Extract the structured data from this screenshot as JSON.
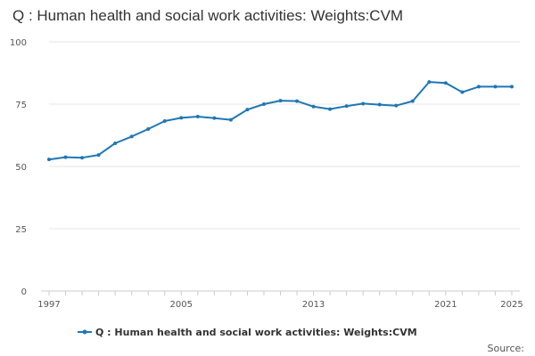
{
  "chart_data": {
    "type": "line",
    "title": "Q : Human health and social work activities: Weights:CVM",
    "x": [
      1997,
      1998,
      1999,
      2000,
      2001,
      2002,
      2003,
      2004,
      2005,
      2006,
      2007,
      2008,
      2009,
      2010,
      2011,
      2012,
      2013,
      2014,
      2015,
      2016,
      2017,
      2018,
      2019,
      2020,
      2021,
      2022,
      2023,
      2024,
      2025
    ],
    "series": [
      {
        "name": "Q : Human health and social work activities: Weights:CVM",
        "color": "#1f77b4",
        "values": [
          52.8,
          53.7,
          53.5,
          54.6,
          59.3,
          62.0,
          65.0,
          68.2,
          69.5,
          70.0,
          69.4,
          68.7,
          72.8,
          75.0,
          76.4,
          76.2,
          74.0,
          73.0,
          74.2,
          75.2,
          74.8,
          74.4,
          76.2,
          83.9,
          83.5,
          79.8,
          82.0,
          82.0,
          82.0
        ]
      }
    ],
    "y_ticks": [
      0,
      25,
      50,
      75,
      100
    ],
    "x_ticks": [
      1997,
      2005,
      2013,
      2021,
      2025
    ],
    "ylim": [
      0,
      100
    ],
    "xlim": [
      1997,
      2025
    ],
    "grid": true,
    "legend_position": "bottom"
  },
  "footer": {
    "source_label": "Source:"
  }
}
